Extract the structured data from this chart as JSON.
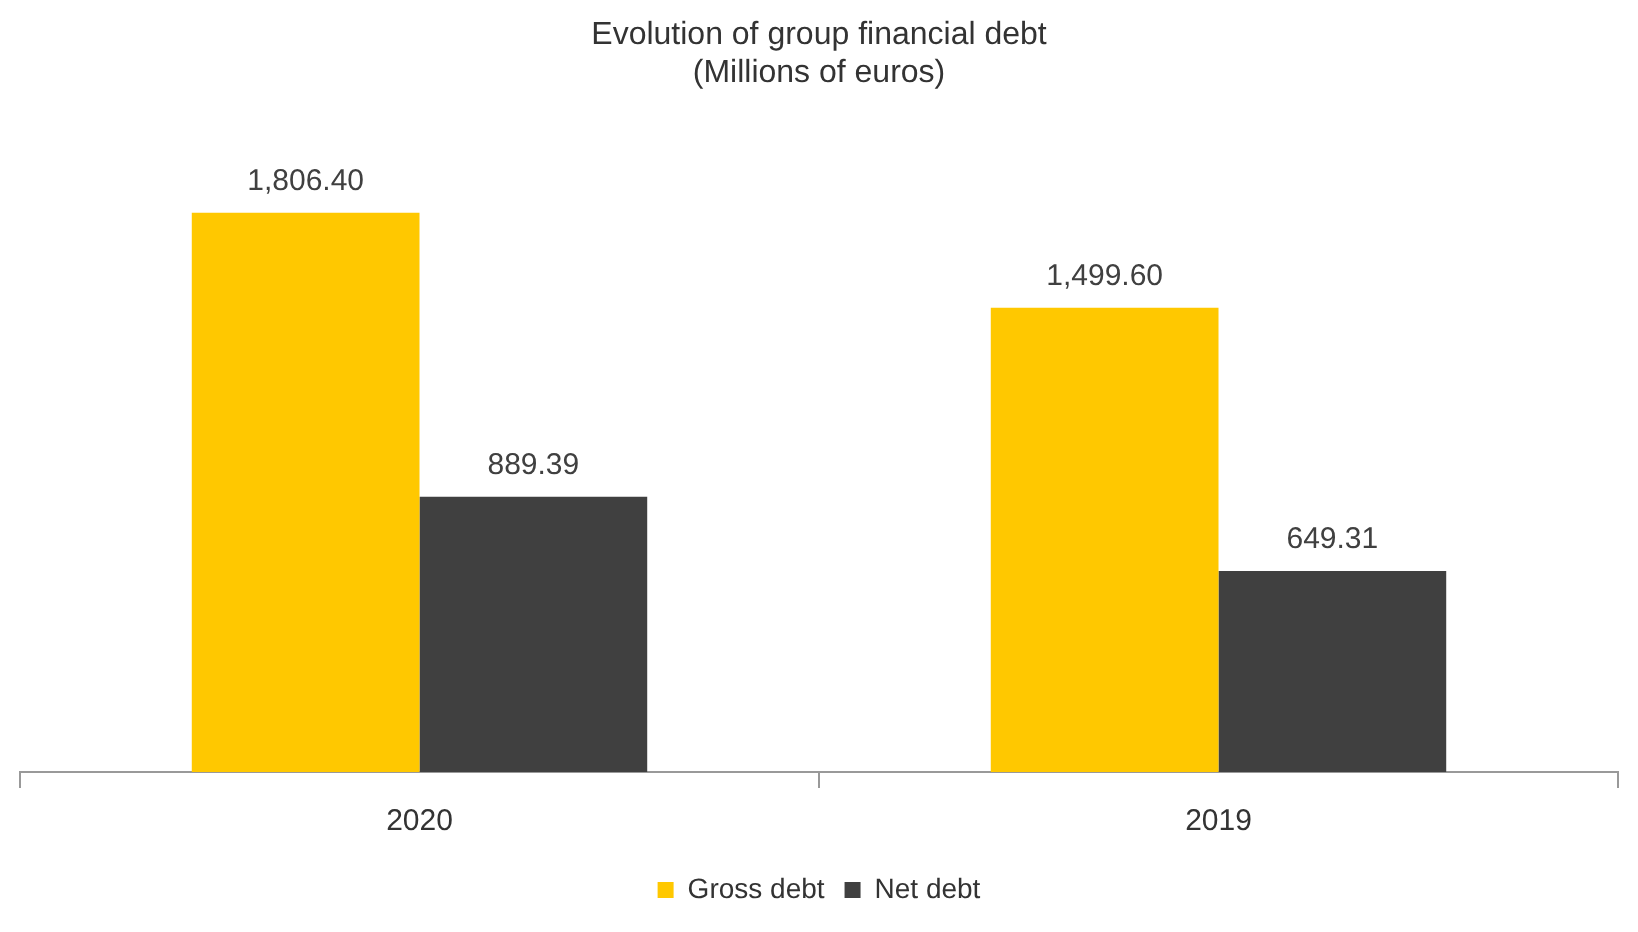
{
  "chart_data": {
    "type": "bar",
    "title": "Evolution of group financial debt",
    "subtitle": "(Millions of euros)",
    "categories": [
      "2020",
      "2019"
    ],
    "series": [
      {
        "name": "Gross debt",
        "color": "#ffc800",
        "values": [
          1806.4,
          1499.6
        ],
        "value_labels": [
          "1,806.40",
          "1,499.60"
        ]
      },
      {
        "name": "Net debt",
        "color": "#404040",
        "values": [
          889.39,
          649.31
        ],
        "value_labels": [
          "889.39",
          "649.31"
        ]
      }
    ],
    "grid": false,
    "legend": "bottom"
  }
}
